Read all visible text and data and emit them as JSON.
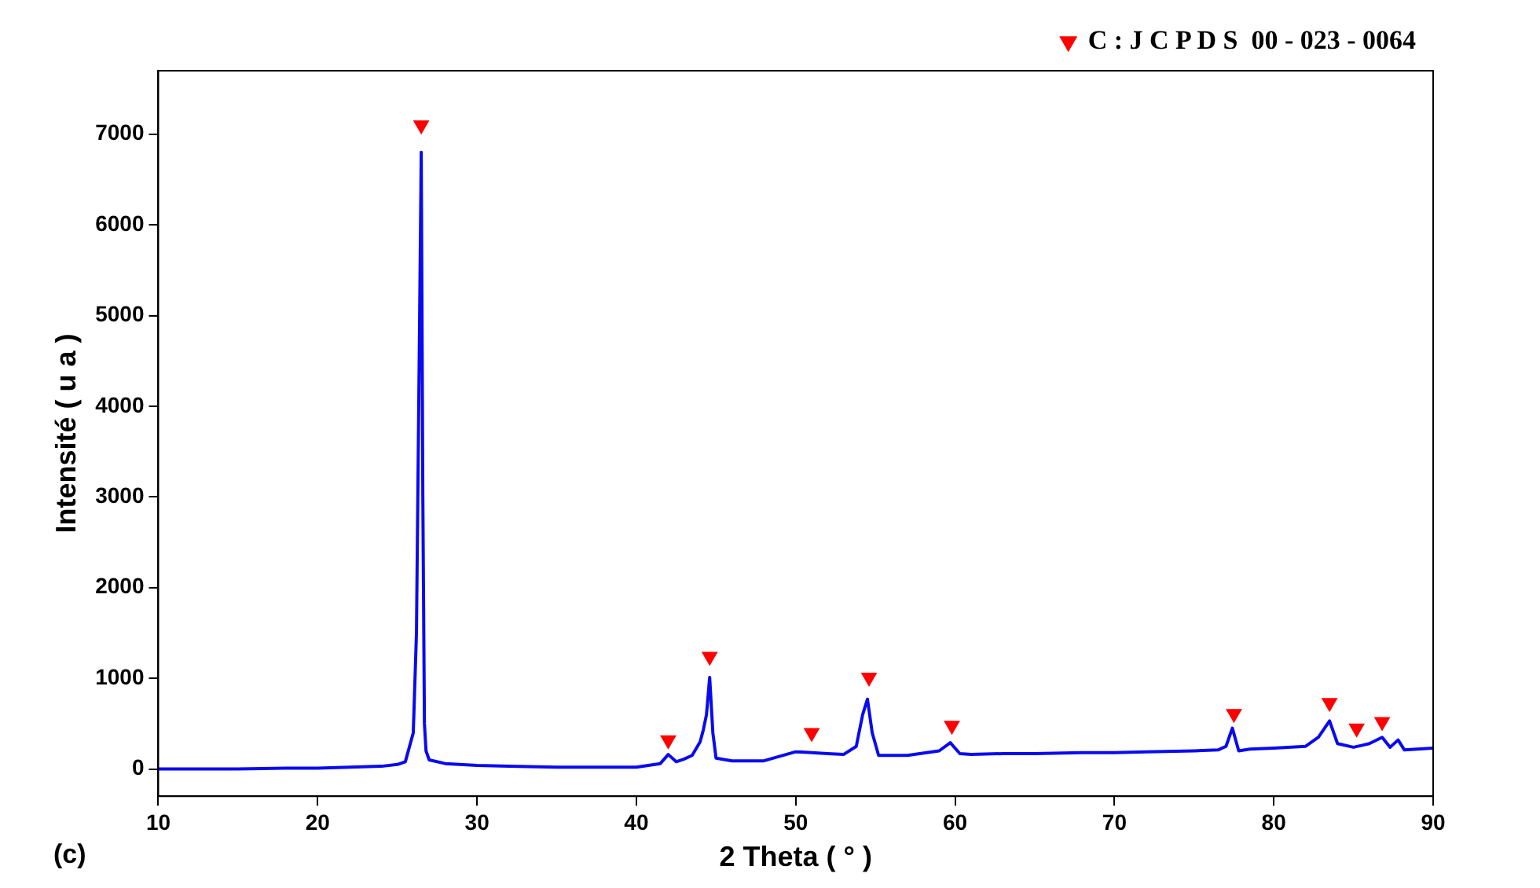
{
  "chart_data": {
    "type": "line",
    "xlabel": "2 Theta ( ° )",
    "ylabel": "Intensité ( u a )",
    "xlim": [
      10,
      90
    ],
    "ylim": [
      -300,
      7700
    ],
    "xticks": [
      10,
      20,
      30,
      40,
      50,
      60,
      70,
      80,
      90
    ],
    "yticks": [
      0,
      1000,
      2000,
      3000,
      4000,
      5000,
      6000,
      7000
    ],
    "grid": false,
    "legend": "top right",
    "annotations": [
      "(c)"
    ],
    "series": [
      {
        "color": "#0a0af0",
        "marker": "none",
        "line_style": "solid",
        "x": [
          10,
          12,
          15,
          18,
          20,
          22,
          24,
          25,
          25.5,
          26,
          26.2,
          26.4,
          26.5,
          26.6,
          26.7,
          26.8,
          27,
          28,
          30,
          32,
          35,
          38,
          40,
          41.5,
          42,
          42.5,
          43,
          43.5,
          44,
          44.2,
          44.4,
          44.6,
          44.8,
          45,
          46,
          48,
          50,
          51,
          52,
          53,
          53.8,
          54.2,
          54.5,
          54.8,
          55.2,
          56,
          57,
          59,
          59.7,
          60.3,
          61,
          63,
          65,
          68,
          70,
          72,
          75,
          76.5,
          77,
          77.4,
          77.8,
          78.5,
          80,
          82,
          82.8,
          83.5,
          84,
          85,
          85.5,
          86,
          86.8,
          87.3,
          87.8,
          88.2,
          89,
          90
        ],
        "values": [
          0,
          0,
          0,
          10,
          10,
          20,
          30,
          50,
          80,
          400,
          1500,
          5000,
          6800,
          3000,
          500,
          200,
          100,
          60,
          40,
          30,
          20,
          20,
          20,
          60,
          160,
          80,
          110,
          150,
          300,
          430,
          600,
          1010,
          400,
          120,
          90,
          90,
          190,
          180,
          170,
          160,
          250,
          600,
          770,
          400,
          150,
          150,
          150,
          200,
          290,
          170,
          160,
          170,
          170,
          180,
          180,
          190,
          200,
          210,
          250,
          450,
          200,
          220,
          230,
          250,
          350,
          530,
          280,
          240,
          260,
          280,
          350,
          240,
          320,
          210,
          220,
          230
        ]
      },
      {
        "type": "scatter",
        "name": "C : J C P D S  00 - 023 - 0064",
        "color": "#ff0000",
        "marker": "triangle",
        "x": [
          26.5,
          42,
          44.6,
          51,
          54.6,
          59.8,
          77.5,
          83.5,
          85.2,
          86.8
        ],
        "values": [
          7100,
          320,
          1240,
          400,
          1010,
          480,
          610,
          730,
          450,
          520
        ]
      }
    ]
  }
}
